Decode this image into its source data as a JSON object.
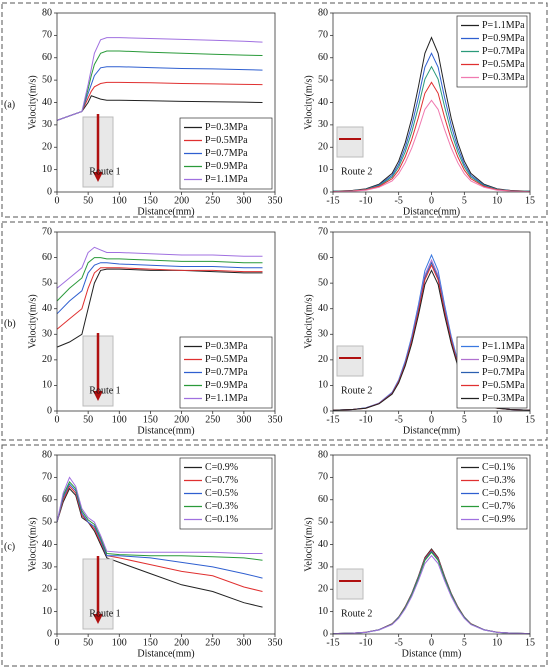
{
  "panel_labels": [
    "(a)",
    "(b)",
    "(c)"
  ],
  "chart_data": [
    {
      "type": "line",
      "xlabel": "Distance(mm)",
      "ylabel": "Velocity(m/s)",
      "annotation": "Route 1",
      "legend": "lower right",
      "xlim": [
        0,
        350
      ],
      "xticks": [
        0,
        50,
        100,
        150,
        200,
        250,
        300,
        350
      ],
      "ylim": [
        0,
        80
      ],
      "yticks": [
        0,
        10,
        20,
        30,
        40,
        50,
        60,
        70,
        80
      ],
      "x": [
        0,
        20,
        40,
        50,
        55,
        60,
        70,
        80,
        100,
        150,
        200,
        250,
        300,
        330
      ],
      "series": [
        {
          "name": "P=0.3MPa",
          "color": "#222222",
          "values": [
            32,
            34,
            36,
            40,
            43,
            42.5,
            41.5,
            41,
            41,
            40.8,
            40.5,
            40.3,
            40.2,
            40
          ]
        },
        {
          "name": "P=0.5MPa",
          "color": "#e03030",
          "values": [
            32,
            34,
            36,
            42,
            45,
            47,
            48.5,
            49,
            49,
            48.8,
            48.5,
            48.3,
            48.1,
            48
          ]
        },
        {
          "name": "P=0.7MPa",
          "color": "#2f5fd0",
          "values": [
            32,
            34,
            36,
            44,
            48,
            52,
            55.5,
            56,
            56,
            55.6,
            55.2,
            55,
            54.7,
            54.5
          ]
        },
        {
          "name": "P=0.9MPa",
          "color": "#2a9a3a",
          "values": [
            32,
            34,
            36,
            46,
            52,
            57,
            62,
            63,
            63,
            62.5,
            62,
            61.6,
            61.2,
            61
          ]
        },
        {
          "name": "P=1.1MPa",
          "color": "#a070e0",
          "values": [
            32,
            34,
            36,
            48,
            55,
            62,
            68,
            69,
            69,
            68.6,
            68.2,
            67.8,
            67.4,
            67
          ]
        }
      ]
    },
    {
      "type": "line",
      "xlabel": "Distance(mm)",
      "ylabel": "Velocity(m/s)",
      "annotation": "Route 2",
      "legend": "upper right",
      "xlim": [
        -15,
        15
      ],
      "xticks": [
        -15,
        -10,
        -5,
        0,
        5,
        10,
        15
      ],
      "ylim": [
        0,
        80
      ],
      "yticks": [
        0,
        10,
        20,
        30,
        40,
        50,
        60,
        70,
        80
      ],
      "x": [
        -15,
        -12,
        -10,
        -8,
        -6,
        -5,
        -4,
        -3,
        -2,
        -1,
        0,
        1,
        2,
        3,
        4,
        5,
        6,
        8,
        10,
        12,
        15
      ],
      "series": [
        {
          "name": "P=1.1MPa",
          "color": "#222222",
          "values": [
            0.3,
            0.7,
            1.4,
            3.5,
            8.3,
            13.8,
            22,
            33,
            47,
            62,
            69,
            62,
            47,
            33,
            22,
            13.8,
            8.3,
            3.5,
            1.4,
            0.7,
            0.3
          ]
        },
        {
          "name": "P=0.9MPa",
          "color": "#2f5fd0",
          "values": [
            0.3,
            0.6,
            1.2,
            3.1,
            7.4,
            12.4,
            19.8,
            29.8,
            42.2,
            55.8,
            62,
            55.8,
            42.2,
            29.8,
            19.8,
            12.4,
            7.4,
            3.1,
            1.2,
            0.6,
            0.3
          ]
        },
        {
          "name": "P=0.7MPa",
          "color": "#2a9a7a",
          "values": [
            0.3,
            0.6,
            1.1,
            2.8,
            6.7,
            11.2,
            17.9,
            26.9,
            38.1,
            50.4,
            56,
            50.4,
            38.1,
            26.9,
            17.9,
            11.2,
            6.7,
            2.8,
            1.1,
            0.6,
            0.3
          ]
        },
        {
          "name": "P=0.5MPa",
          "color": "#e03030",
          "values": [
            0.2,
            0.5,
            1,
            2.5,
            5.9,
            9.8,
            15.7,
            23.5,
            33.3,
            44.1,
            49,
            44.1,
            33.3,
            23.5,
            15.7,
            9.8,
            5.9,
            2.5,
            1,
            0.5,
            0.2
          ]
        },
        {
          "name": "P=0.3MPa",
          "color": "#f07ab0",
          "values": [
            0.2,
            0.4,
            0.8,
            2.1,
            4.9,
            8.2,
            13.1,
            19.7,
            27.9,
            36.9,
            41,
            36.9,
            27.9,
            19.7,
            13.1,
            8.2,
            4.9,
            2.1,
            0.8,
            0.4,
            0.2
          ]
        }
      ]
    },
    {
      "type": "line",
      "xlabel": "Distance(mm)",
      "ylabel": "Velocity(m/s)",
      "annotation": "Route 1",
      "legend": "lower right",
      "xlim": [
        0,
        350
      ],
      "xticks": [
        0,
        50,
        100,
        150,
        200,
        250,
        300,
        350
      ],
      "ylim": [
        0,
        70
      ],
      "yticks": [
        0,
        10,
        20,
        30,
        40,
        50,
        60,
        70
      ],
      "x": [
        0,
        20,
        40,
        50,
        60,
        70,
        80,
        100,
        150,
        200,
        250,
        300,
        330
      ],
      "series": [
        {
          "name": "P=0.3MPa",
          "color": "#222222",
          "values": [
            25,
            27,
            30,
            40,
            50,
            55,
            55.5,
            55.5,
            55,
            55,
            54.5,
            54,
            54
          ]
        },
        {
          "name": "P=0.5MPa",
          "color": "#e03030",
          "values": [
            32,
            36,
            40,
            48,
            54,
            56,
            56,
            56,
            55.5,
            55,
            55,
            54.5,
            54.5
          ]
        },
        {
          "name": "P=0.7MPa",
          "color": "#2f5fd0",
          "values": [
            38,
            43,
            47,
            54,
            57,
            58,
            58,
            57.5,
            57,
            56.5,
            56.5,
            56,
            56
          ]
        },
        {
          "name": "P=0.9MPa",
          "color": "#2a9a3a",
          "values": [
            43,
            48,
            52,
            58,
            60,
            60,
            59.5,
            59.5,
            59,
            58.5,
            58.5,
            58,
            58
          ]
        },
        {
          "name": "P=1.1MPa",
          "color": "#a070e0",
          "values": [
            48,
            52,
            56,
            62,
            64,
            63,
            62,
            62,
            61.5,
            61,
            61,
            60.5,
            60.5
          ]
        }
      ]
    },
    {
      "type": "line",
      "xlabel": "Distance(mm)",
      "ylabel": "Velocity(m/s)",
      "annotation": "Route 2",
      "legend": "lower right",
      "xlim": [
        -15,
        15
      ],
      "xticks": [
        -15,
        -10,
        -5,
        0,
        5,
        10,
        15
      ],
      "ylim": [
        0,
        70
      ],
      "yticks": [
        0,
        10,
        20,
        30,
        40,
        50,
        60,
        70
      ],
      "x": [
        -15,
        -12,
        -10,
        -8,
        -6,
        -5,
        -4,
        -3,
        -2,
        -1,
        0,
        1,
        2,
        3,
        4,
        5,
        6,
        8,
        10,
        12,
        15
      ],
      "series": [
        {
          "name": "P=1.1MPa",
          "color": "#3a78e0",
          "values": [
            0.3,
            0.6,
            1.2,
            3.1,
            7.3,
            12.2,
            19.5,
            29.3,
            41.5,
            54.9,
            61,
            54.9,
            41.5,
            29.3,
            19.5,
            12.2,
            7.3,
            3.1,
            1.2,
            0.6,
            0.3
          ]
        },
        {
          "name": "P=0.9MPa",
          "color": "#b070d0",
          "values": [
            0.3,
            0.6,
            1.2,
            3,
            7.1,
            11.8,
            18.9,
            28.3,
            40.1,
            53.1,
            59,
            53.1,
            40.1,
            28.3,
            18.9,
            11.8,
            7.1,
            3,
            1.2,
            0.6,
            0.3
          ]
        },
        {
          "name": "P=0.7MPa",
          "color": "#2a5fb0",
          "values": [
            0.3,
            0.6,
            1.2,
            2.9,
            7,
            11.6,
            18.6,
            27.8,
            39.4,
            52.2,
            58,
            52.2,
            39.4,
            27.8,
            18.6,
            11.6,
            7,
            2.9,
            1.2,
            0.6,
            0.3
          ]
        },
        {
          "name": "P=0.5MPa",
          "color": "#e03030",
          "values": [
            0.3,
            0.6,
            1.1,
            2.9,
            6.8,
            11.4,
            18.2,
            27.4,
            38.8,
            51.3,
            57,
            51.3,
            38.8,
            27.4,
            18.2,
            11.4,
            6.8,
            2.9,
            1.1,
            0.6,
            0.3
          ]
        },
        {
          "name": "P=0.3MPa",
          "color": "#222222",
          "values": [
            0.3,
            0.6,
            1.1,
            2.8,
            6.6,
            11,
            17.6,
            26.4,
            37.4,
            49.5,
            55,
            49.5,
            37.4,
            26.4,
            17.6,
            11,
            6.6,
            2.8,
            1.1,
            0.6,
            0.3
          ]
        }
      ]
    },
    {
      "type": "line",
      "xlabel": "Distance(mm)",
      "ylabel": "Velocity(m/s)",
      "annotation": "Route 1",
      "legend": "upper right",
      "xlim": [
        0,
        350
      ],
      "xticks": [
        0,
        50,
        100,
        150,
        200,
        250,
        300,
        350
      ],
      "ylim": [
        0,
        80
      ],
      "yticks": [
        0,
        10,
        20,
        30,
        40,
        50,
        60,
        70,
        80
      ],
      "x": [
        0,
        10,
        20,
        30,
        40,
        50,
        60,
        70,
        80,
        100,
        150,
        200,
        250,
        300,
        330
      ],
      "series": [
        {
          "name": "C=0.9%",
          "color": "#222222",
          "values": [
            50,
            59,
            65,
            62,
            52,
            50,
            46,
            40,
            34,
            32,
            27,
            22,
            19,
            14,
            12
          ]
        },
        {
          "name": "C=0.7%",
          "color": "#e03030",
          "values": [
            50,
            60,
            66,
            63,
            53,
            50,
            47,
            41,
            35,
            34,
            31,
            28,
            26,
            21,
            19
          ]
        },
        {
          "name": "C=0.5%",
          "color": "#2f5fd0",
          "values": [
            50,
            61,
            67,
            64,
            54,
            50,
            48,
            42,
            35,
            35,
            34,
            32,
            30,
            27,
            25
          ]
        },
        {
          "name": "C=0.3%",
          "color": "#2a9a3a",
          "values": [
            50,
            62,
            68,
            65,
            55,
            51,
            49,
            43,
            36,
            35.5,
            35,
            35,
            34.5,
            34,
            33
          ]
        },
        {
          "name": "C=0.1%",
          "color": "#a070e0",
          "values": [
            50,
            63,
            70,
            66,
            56,
            52,
            50,
            44,
            37,
            36.5,
            36.5,
            36.5,
            36.5,
            36,
            36
          ]
        }
      ]
    },
    {
      "type": "line",
      "xlabel": "Distance (mm)",
      "ylabel": "Velocity(m/s)",
      "annotation": "Route 2",
      "legend": "upper right",
      "xlim": [
        -15,
        15
      ],
      "xticks": [
        -15,
        -10,
        -5,
        0,
        5,
        10,
        15
      ],
      "ylim": [
        0,
        80
      ],
      "yticks": [
        0,
        10,
        20,
        30,
        40,
        50,
        60,
        70,
        80
      ],
      "x": [
        -15,
        -12,
        -10,
        -8,
        -6,
        -5,
        -4,
        -3,
        -2,
        -1,
        0,
        1,
        2,
        3,
        4,
        5,
        6,
        8,
        10,
        12,
        15
      ],
      "series": [
        {
          "name": "C=0.1%",
          "color": "#222222",
          "values": [
            0.2,
            0.4,
            0.8,
            1.9,
            4.6,
            7.6,
            12.2,
            18.2,
            25.8,
            34.2,
            38,
            34.2,
            25.8,
            18.2,
            12.2,
            7.6,
            4.6,
            1.9,
            0.8,
            0.4,
            0.2
          ]
        },
        {
          "name": "C=0.3%",
          "color": "#e03030",
          "values": [
            0.2,
            0.4,
            0.8,
            1.9,
            4.5,
            7.5,
            12,
            18,
            25.5,
            33.8,
            37.5,
            33.8,
            25.5,
            18,
            12,
            7.5,
            4.5,
            1.9,
            0.8,
            0.4,
            0.2
          ]
        },
        {
          "name": "C=0.5%",
          "color": "#2f5fd0",
          "values": [
            0.2,
            0.4,
            0.7,
            1.9,
            4.4,
            7.4,
            11.8,
            17.8,
            25.2,
            33.3,
            37,
            33.3,
            25.2,
            17.8,
            11.8,
            7.4,
            4.4,
            1.9,
            0.7,
            0.4,
            0.2
          ]
        },
        {
          "name": "C=0.7%",
          "color": "#2a9a3a",
          "values": [
            0.2,
            0.4,
            0.7,
            1.8,
            4.4,
            7.3,
            11.7,
            17.5,
            24.8,
            32.9,
            36.5,
            32.9,
            24.8,
            17.5,
            11.7,
            7.3,
            4.4,
            1.8,
            0.7,
            0.4,
            0.2
          ]
        },
        {
          "name": "C=0.9%",
          "color": "#a070e0",
          "values": [
            0.2,
            0.4,
            0.7,
            1.8,
            4.2,
            7,
            11.2,
            16.8,
            23.8,
            31.5,
            35,
            31.5,
            23.8,
            16.8,
            11.2,
            7,
            4.2,
            1.8,
            0.7,
            0.4,
            0.2
          ]
        }
      ]
    }
  ]
}
